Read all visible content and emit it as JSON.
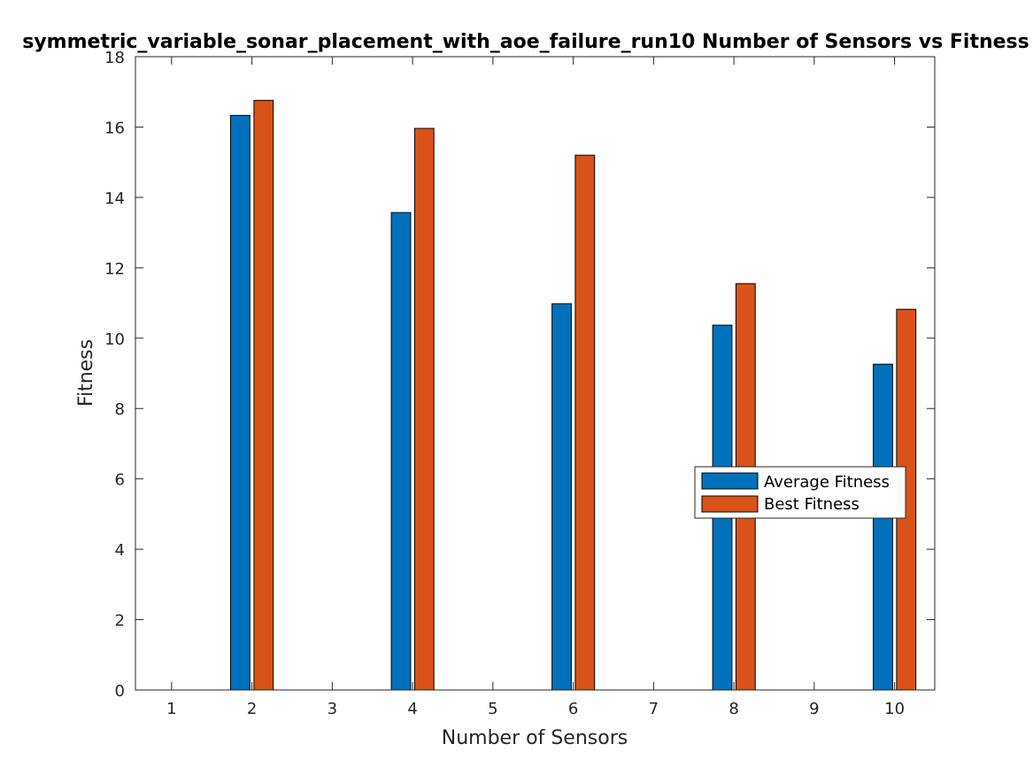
{
  "chart_data": {
    "type": "bar",
    "title": "symmetric_variable_sonar_placement_with_aoe_failure_run10 Number of Sensors vs Fitness",
    "xlabel": "Number of Sensors",
    "ylabel": "Fitness",
    "categories": [
      "1",
      "2",
      "3",
      "4",
      "5",
      "6",
      "7",
      "8",
      "9",
      "10"
    ],
    "x": [
      1,
      2,
      3,
      4,
      5,
      6,
      7,
      8,
      9,
      10
    ],
    "series": [
      {
        "name": "Average Fitness",
        "color": "#0072BD",
        "values": [
          0,
          16.33,
          0,
          13.57,
          0,
          10.98,
          0,
          10.37,
          0,
          9.26
        ]
      },
      {
        "name": "Best Fitness",
        "color": "#D95319",
        "values": [
          0,
          16.76,
          0,
          15.96,
          0,
          15.2,
          0,
          11.55,
          0,
          10.82
        ]
      }
    ],
    "xlim": [
      0.55,
      10.5
    ],
    "ylim": [
      0,
      18
    ],
    "yticks": [
      0,
      2,
      4,
      6,
      8,
      10,
      12,
      14,
      16,
      18
    ],
    "grid": false,
    "legend_position": "right-middle"
  }
}
